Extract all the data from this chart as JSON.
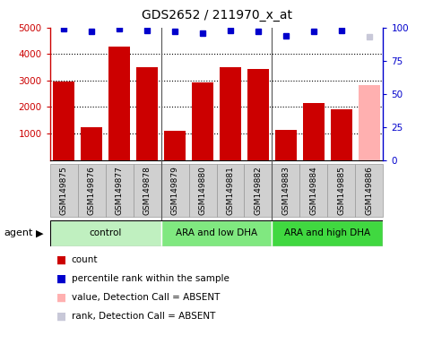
{
  "title": "GDS2652 / 211970_x_at",
  "samples": [
    "GSM149875",
    "GSM149876",
    "GSM149877",
    "GSM149878",
    "GSM149879",
    "GSM149880",
    "GSM149881",
    "GSM149882",
    "GSM149883",
    "GSM149884",
    "GSM149885",
    "GSM149886"
  ],
  "counts": [
    2950,
    1230,
    4280,
    3500,
    1100,
    2920,
    3500,
    3450,
    1120,
    2150,
    1920,
    2820
  ],
  "bar_colors": [
    "#cc0000",
    "#cc0000",
    "#cc0000",
    "#cc0000",
    "#cc0000",
    "#cc0000",
    "#cc0000",
    "#cc0000",
    "#cc0000",
    "#cc0000",
    "#cc0000",
    "#ffb0b0"
  ],
  "percentile_ranks": [
    99,
    97,
    99,
    98,
    97,
    96,
    98,
    97,
    94,
    97,
    98,
    93
  ],
  "rank_absent": [
    false,
    false,
    false,
    false,
    false,
    false,
    false,
    false,
    false,
    false,
    false,
    true
  ],
  "ylim_left": [
    0,
    5000
  ],
  "ylim_right": [
    0,
    100
  ],
  "yticks_left": [
    1000,
    2000,
    3000,
    4000,
    5000
  ],
  "yticks_right": [
    0,
    25,
    50,
    75,
    100
  ],
  "groups": [
    {
      "label": "control",
      "start": 0,
      "end": 3,
      "color": "#c0f0c0"
    },
    {
      "label": "ARA and low DHA",
      "start": 4,
      "end": 7,
      "color": "#80e880"
    },
    {
      "label": "ARA and high DHA",
      "start": 8,
      "end": 11,
      "color": "#40d840"
    }
  ],
  "legend_items": [
    {
      "label": "count",
      "color": "#cc0000"
    },
    {
      "label": "percentile rank within the sample",
      "color": "#0000cc"
    },
    {
      "label": "value, Detection Call = ABSENT",
      "color": "#ffb0b0"
    },
    {
      "label": "rank, Detection Call = ABSENT",
      "color": "#c8c8d8"
    }
  ],
  "blue_square_color": "#0000cc",
  "blue_square_absent_color": "#c8c8d8",
  "label_box_color": "#d0d0d0",
  "label_box_edge": "#999999",
  "group_sep_color": "#555555"
}
